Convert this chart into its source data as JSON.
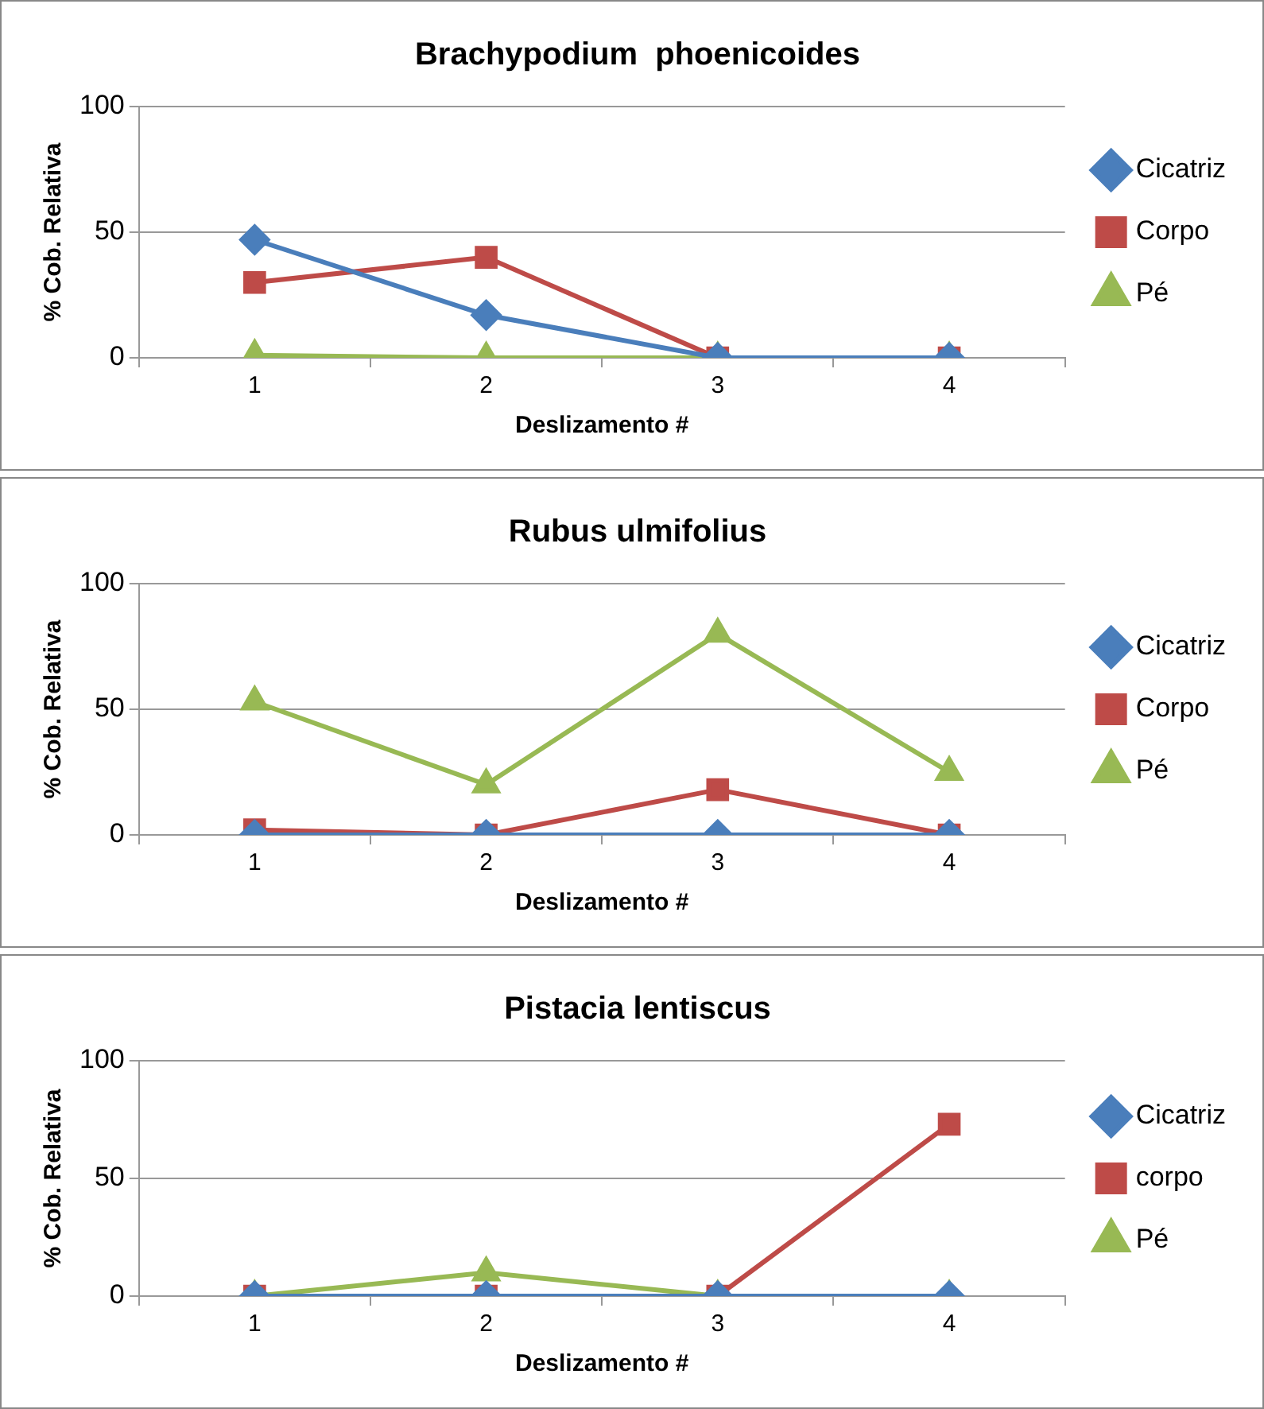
{
  "chart_data": [
    {
      "type": "line",
      "title": "Brachypodium  phoenicoides",
      "xlabel": "Deslizamento #",
      "ylabel": "% Cob. Relativa",
      "categories": [
        "1",
        "2",
        "3",
        "4"
      ],
      "ylim": [
        0,
        100
      ],
      "yticks": [
        0,
        50,
        100
      ],
      "grid": "y",
      "legend": "right",
      "series": [
        {
          "name": "Cicatriz",
          "color": "#4a7ebb",
          "marker": "diamond",
          "values": [
            47,
            17,
            0,
            0
          ]
        },
        {
          "name": "Corpo",
          "color": "#be4b48",
          "marker": "square",
          "values": [
            30,
            40,
            0,
            0
          ]
        },
        {
          "name": "Pé",
          "color": "#98b954",
          "marker": "triangle",
          "values": [
            1,
            0,
            0,
            0
          ]
        }
      ]
    },
    {
      "type": "line",
      "title": "Rubus ulmifolius",
      "xlabel": "Deslizamento #",
      "ylabel": "% Cob. Relativa",
      "categories": [
        "1",
        "2",
        "3",
        "4"
      ],
      "ylim": [
        0,
        100
      ],
      "yticks": [
        0,
        50,
        100
      ],
      "grid": "y",
      "legend": "right",
      "series": [
        {
          "name": "Cicatriz",
          "color": "#4a7ebb",
          "marker": "diamond",
          "values": [
            0,
            0,
            0,
            0
          ]
        },
        {
          "name": "Corpo",
          "color": "#be4b48",
          "marker": "square",
          "values": [
            2,
            0,
            18,
            0
          ]
        },
        {
          "name": "Pé",
          "color": "#98b954",
          "marker": "triangle",
          "values": [
            53,
            20,
            80,
            25
          ]
        }
      ]
    },
    {
      "type": "line",
      "title": "Pistacia lentiscus",
      "xlabel": "Deslizamento #",
      "ylabel": "% Cob. Relativa",
      "categories": [
        "1",
        "2",
        "3",
        "4"
      ],
      "ylim": [
        0,
        100
      ],
      "yticks": [
        0,
        50,
        100
      ],
      "grid": "y",
      "legend": "right",
      "series": [
        {
          "name": "Cicatriz",
          "color": "#4a7ebb",
          "marker": "diamond",
          "values": [
            0,
            0,
            0,
            0
          ]
        },
        {
          "name": "corpo",
          "color": "#be4b48",
          "marker": "square",
          "values": [
            0,
            0,
            0,
            73
          ]
        },
        {
          "name": "Pé",
          "color": "#98b954",
          "marker": "triangle",
          "values": [
            0,
            10,
            0,
            0
          ]
        }
      ]
    }
  ]
}
